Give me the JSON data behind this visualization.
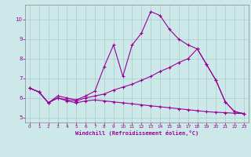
{
  "xlabel": "Windchill (Refroidissement éolien,°C)",
  "bg_color": "#cce8e8",
  "line_color": "#990099",
  "grid_color": "#aacccc",
  "xlim": [
    -0.5,
    23.5
  ],
  "ylim": [
    4.75,
    10.75
  ],
  "x_ticks": [
    0,
    1,
    2,
    3,
    4,
    5,
    6,
    7,
    8,
    9,
    10,
    11,
    12,
    13,
    14,
    15,
    16,
    17,
    18,
    19,
    20,
    21,
    22,
    23
  ],
  "y_ticks": [
    5,
    6,
    7,
    8,
    9,
    10
  ],
  "line1_x": [
    0,
    1,
    2,
    3,
    4,
    5,
    6,
    7,
    8,
    9,
    10,
    11,
    12,
    13,
    14,
    15,
    16,
    17,
    18,
    19,
    20,
    21,
    22,
    23
  ],
  "line1_y": [
    6.5,
    6.3,
    5.75,
    6.1,
    6.0,
    5.9,
    6.1,
    6.35,
    7.6,
    8.7,
    7.1,
    8.7,
    9.3,
    10.4,
    10.2,
    9.5,
    9.0,
    8.7,
    8.5,
    7.7,
    6.9,
    5.8,
    5.3,
    5.2
  ],
  "line2_x": [
    0,
    1,
    2,
    3,
    4,
    5,
    6,
    7,
    8,
    9,
    10,
    11,
    12,
    13,
    14,
    15,
    16,
    17,
    18,
    19,
    20,
    21,
    22,
    23
  ],
  "line2_y": [
    6.5,
    6.3,
    5.75,
    6.0,
    5.9,
    5.85,
    6.0,
    6.1,
    6.2,
    6.4,
    6.55,
    6.7,
    6.9,
    7.1,
    7.35,
    7.55,
    7.8,
    8.0,
    8.5,
    7.7,
    6.9,
    5.8,
    5.3,
    5.2
  ],
  "line3_x": [
    0,
    1,
    2,
    3,
    4,
    5,
    6,
    7,
    8,
    9,
    10,
    11,
    12,
    13,
    14,
    15,
    16,
    17,
    18,
    19,
    20,
    21,
    22,
    23
  ],
  "line3_y": [
    6.5,
    6.3,
    5.75,
    6.0,
    5.85,
    5.75,
    5.85,
    5.9,
    5.85,
    5.8,
    5.75,
    5.7,
    5.65,
    5.6,
    5.55,
    5.5,
    5.45,
    5.4,
    5.35,
    5.3,
    5.27,
    5.25,
    5.22,
    5.2
  ]
}
